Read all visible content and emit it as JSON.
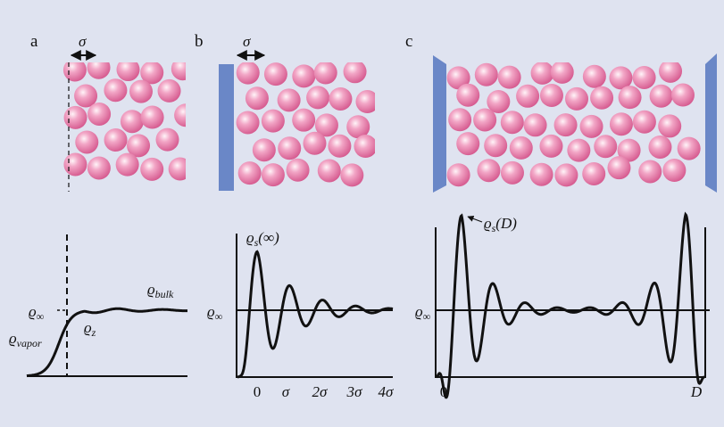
{
  "panels": [
    {
      "label": "a",
      "spacing": "σ",
      "rho_inf": {
        "symbol": "ϱ",
        "subscript": "∞"
      },
      "rho_bulk": {
        "symbol": "ϱ",
        "subscript": "bulk"
      },
      "rho_vapor": {
        "symbol": "ϱ",
        "subscript": "vapor"
      },
      "rho_z": {
        "symbol": "ϱ",
        "subscript": "z"
      }
    },
    {
      "label": "b",
      "spacing": "σ",
      "rho_s": {
        "symbol": "ϱ",
        "subscript": "s",
        "argument": "(∞)"
      },
      "rho_inf": {
        "symbol": "ϱ",
        "subscript": "∞"
      },
      "ticks": [
        "0",
        "σ",
        "2σ",
        "3σ",
        "4σ"
      ]
    },
    {
      "label": "c",
      "rho_s": {
        "symbol": "ϱ",
        "subscript": "s",
        "argument": "(D)"
      },
      "rho_inf": {
        "symbol": "ϱ",
        "subscript": "∞"
      },
      "ticks": [
        "0",
        "D"
      ]
    }
  ]
}
